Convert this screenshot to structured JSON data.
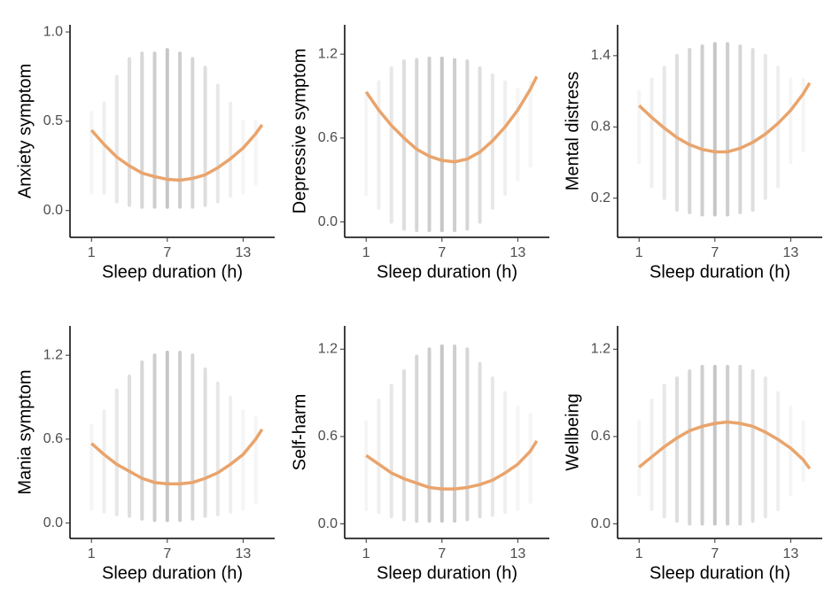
{
  "chart_data": [
    {
      "type": "line",
      "ylabel": "Anxiety symptom",
      "xlabel": "Sleep duration (h)",
      "color": "#e9a46c",
      "points_color": "#b3b3b3",
      "x": [
        1,
        2,
        3,
        4,
        5,
        6,
        7,
        8,
        9,
        10,
        11,
        12,
        13,
        14,
        14.5
      ],
      "values": [
        0.45,
        0.37,
        0.3,
        0.25,
        0.21,
        0.19,
        0.175,
        0.17,
        0.18,
        0.2,
        0.24,
        0.29,
        0.35,
        0.43,
        0.48
      ],
      "points_x": [
        1,
        2,
        3,
        4,
        5,
        6,
        7,
        8,
        9,
        10,
        11,
        12,
        13,
        14
      ],
      "points_low": [
        0.1,
        0.1,
        0.05,
        0.03,
        0.02,
        0.02,
        0.02,
        0.02,
        0.02,
        0.03,
        0.05,
        0.08,
        0.1,
        0.15
      ],
      "points_high": [
        0.55,
        0.6,
        0.75,
        0.85,
        0.88,
        0.88,
        0.9,
        0.88,
        0.85,
        0.8,
        0.7,
        0.6,
        0.5,
        0.5
      ],
      "xlim": [
        -0.7,
        15.5
      ],
      "xticks": [
        1,
        7,
        13
      ],
      "ylim": [
        -0.15,
        1.04
      ],
      "yticks": [
        {
          "value": 0,
          "label": "0.0"
        },
        0.5,
        {
          "value": 1,
          "label": "1.0"
        }
      ]
    },
    {
      "type": "line",
      "ylabel": "Depressive symptom",
      "xlabel": "Sleep duration (h)",
      "color": "#e9a46c",
      "points_color": "#b3b3b3",
      "x": [
        1,
        2,
        3,
        4,
        5,
        6,
        7,
        8,
        9,
        10,
        11,
        12,
        13,
        14,
        14.5
      ],
      "values": [
        0.93,
        0.8,
        0.69,
        0.6,
        0.52,
        0.47,
        0.44,
        0.43,
        0.45,
        0.5,
        0.58,
        0.68,
        0.8,
        0.95,
        1.04
      ],
      "points_x": [
        1,
        2,
        3,
        4,
        5,
        6,
        7,
        8,
        9,
        10,
        11,
        12,
        13,
        14
      ],
      "points_low": [
        0.2,
        0.1,
        0.0,
        -0.05,
        -0.06,
        -0.06,
        -0.06,
        -0.06,
        -0.05,
        0.0,
        0.1,
        0.2,
        0.3,
        0.4
      ],
      "points_high": [
        0.9,
        1.0,
        1.1,
        1.15,
        1.16,
        1.17,
        1.17,
        1.16,
        1.15,
        1.1,
        1.05,
        1.0,
        0.95,
        1.0
      ],
      "xlim": [
        -0.7,
        15.5
      ],
      "xticks": [
        1,
        7,
        13
      ],
      "ylim": [
        -0.11,
        1.41
      ],
      "yticks": [
        {
          "value": 0,
          "label": "0.0"
        },
        0.6,
        1.2
      ]
    },
    {
      "type": "line",
      "ylabel": "Mental distress",
      "xlabel": "Sleep duration (h)",
      "color": "#e9a46c",
      "points_color": "#b3b3b3",
      "x": [
        1,
        2,
        3,
        4,
        5,
        6,
        7,
        8,
        9,
        10,
        11,
        12,
        13,
        14,
        14.5
      ],
      "values": [
        0.98,
        0.88,
        0.79,
        0.71,
        0.65,
        0.61,
        0.59,
        0.59,
        0.62,
        0.67,
        0.74,
        0.83,
        0.94,
        1.08,
        1.17
      ],
      "points_x": [
        1,
        2,
        3,
        4,
        5,
        6,
        7,
        8,
        9,
        10,
        11,
        12,
        13,
        14
      ],
      "points_low": [
        0.5,
        0.3,
        0.2,
        0.1,
        0.08,
        0.06,
        0.06,
        0.06,
        0.08,
        0.1,
        0.2,
        0.3,
        0.5,
        0.6
      ],
      "points_high": [
        1.1,
        1.2,
        1.3,
        1.4,
        1.45,
        1.48,
        1.5,
        1.5,
        1.48,
        1.45,
        1.4,
        1.3,
        1.2,
        1.2
      ],
      "xlim": [
        -0.7,
        15.5
      ],
      "xticks": [
        1,
        7,
        13
      ],
      "ylim": [
        -0.13,
        1.66
      ],
      "yticks": [
        0.2,
        0.8,
        1.4
      ]
    },
    {
      "type": "line",
      "ylabel": "Mania symptom",
      "xlabel": "Sleep duration (h)",
      "color": "#e9a46c",
      "points_color": "#b3b3b3",
      "x": [
        1,
        2,
        3,
        4,
        5,
        6,
        7,
        8,
        9,
        10,
        11,
        12,
        13,
        14,
        14.5
      ],
      "values": [
        0.57,
        0.49,
        0.42,
        0.37,
        0.32,
        0.29,
        0.28,
        0.28,
        0.29,
        0.32,
        0.36,
        0.42,
        0.49,
        0.6,
        0.67
      ],
      "points_x": [
        1,
        2,
        3,
        4,
        5,
        6,
        7,
        8,
        9,
        10,
        11,
        12,
        13,
        14
      ],
      "points_low": [
        0.1,
        0.08,
        0.06,
        0.05,
        0.03,
        0.02,
        0.02,
        0.02,
        0.03,
        0.05,
        0.06,
        0.08,
        0.1,
        0.15
      ],
      "points_high": [
        0.7,
        0.8,
        0.95,
        1.05,
        1.15,
        1.2,
        1.22,
        1.22,
        1.2,
        1.1,
        1.0,
        0.9,
        0.8,
        0.75
      ],
      "xlim": [
        -0.7,
        15.5
      ],
      "xticks": [
        1,
        7,
        13
      ],
      "ylim": [
        -0.11,
        1.41
      ],
      "yticks": [
        {
          "value": 0,
          "label": "0.0"
        },
        0.6,
        1.2
      ]
    },
    {
      "type": "line",
      "ylabel": "Self-harm",
      "xlabel": "Sleep duration (h)",
      "color": "#e9a46c",
      "points_color": "#b3b3b3",
      "x": [
        1,
        2,
        3,
        4,
        5,
        6,
        7,
        8,
        9,
        10,
        11,
        12,
        13,
        14,
        14.5
      ],
      "values": [
        0.47,
        0.41,
        0.35,
        0.31,
        0.28,
        0.25,
        0.24,
        0.24,
        0.25,
        0.27,
        0.3,
        0.35,
        0.41,
        0.5,
        0.57
      ],
      "points_x": [
        1,
        2,
        3,
        4,
        5,
        6,
        7,
        8,
        9,
        10,
        11,
        12,
        13,
        14
      ],
      "points_low": [
        0.1,
        0.08,
        0.05,
        0.03,
        0.02,
        0.02,
        0.02,
        0.02,
        0.03,
        0.05,
        0.06,
        0.08,
        0.1,
        0.15
      ],
      "points_high": [
        0.7,
        0.85,
        0.95,
        1.05,
        1.15,
        1.2,
        1.22,
        1.22,
        1.2,
        1.1,
        1.0,
        0.9,
        0.8,
        0.75
      ],
      "xlim": [
        -0.7,
        15.5
      ],
      "xticks": [
        1,
        7,
        13
      ],
      "ylim": [
        -0.1,
        1.36
      ],
      "yticks": [
        {
          "value": 0,
          "label": "0.0"
        },
        0.6,
        1.2
      ]
    },
    {
      "type": "line",
      "ylabel": "Wellbeing",
      "xlabel": "Sleep duration (h)",
      "color": "#e9a46c",
      "points_color": "#b3b3b3",
      "x": [
        1,
        2,
        3,
        4,
        5,
        6,
        7,
        8,
        9,
        10,
        11,
        12,
        13,
        14,
        14.5
      ],
      "values": [
        0.39,
        0.46,
        0.53,
        0.59,
        0.64,
        0.67,
        0.69,
        0.7,
        0.69,
        0.67,
        0.63,
        0.58,
        0.52,
        0.44,
        0.38
      ],
      "points_x": [
        1,
        2,
        3,
        4,
        5,
        6,
        7,
        8,
        9,
        10,
        11,
        12,
        13,
        14
      ],
      "points_low": [
        0.2,
        0.1,
        0.05,
        0.02,
        0.0,
        0.0,
        0.0,
        0.0,
        0.0,
        0.02,
        0.05,
        0.1,
        0.2,
        0.3
      ],
      "points_high": [
        0.7,
        0.85,
        0.95,
        1.0,
        1.05,
        1.08,
        1.08,
        1.08,
        1.08,
        1.05,
        1.0,
        0.9,
        0.8,
        0.7
      ],
      "xlim": [
        -0.7,
        15.5
      ],
      "xticks": [
        1,
        7,
        13
      ],
      "ylim": [
        -0.1,
        1.36
      ],
      "yticks": [
        {
          "value": 0,
          "label": "0.0"
        },
        0.6,
        1.2
      ]
    }
  ]
}
